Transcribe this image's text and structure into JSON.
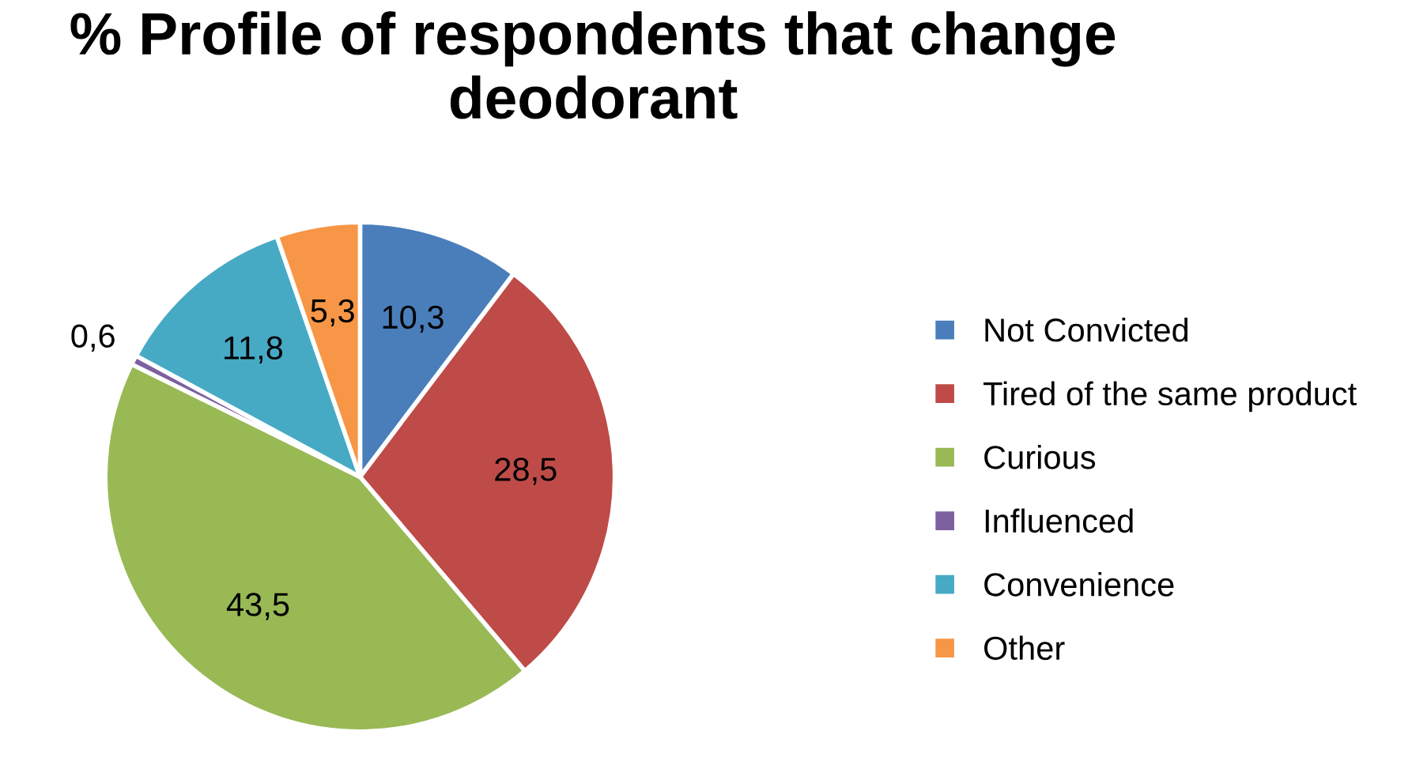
{
  "chart_data": {
    "type": "pie",
    "title": "% Profile of respondents that change deodorant",
    "categories": [
      "Not Convicted",
      "Tired of the same product",
      "Curious",
      "Influenced",
      "Convenience",
      "Other"
    ],
    "values": [
      10.3,
      28.5,
      43.5,
      0.6,
      11.8,
      5.3
    ],
    "value_labels": [
      "10,3",
      "28,5",
      "43,5",
      "0,6",
      "11,8",
      "5,3"
    ],
    "colors": [
      "#4a7ebb",
      "#be4b48",
      "#98b954",
      "#7d60a0",
      "#46aac5",
      "#f79646"
    ],
    "legend": "right"
  }
}
